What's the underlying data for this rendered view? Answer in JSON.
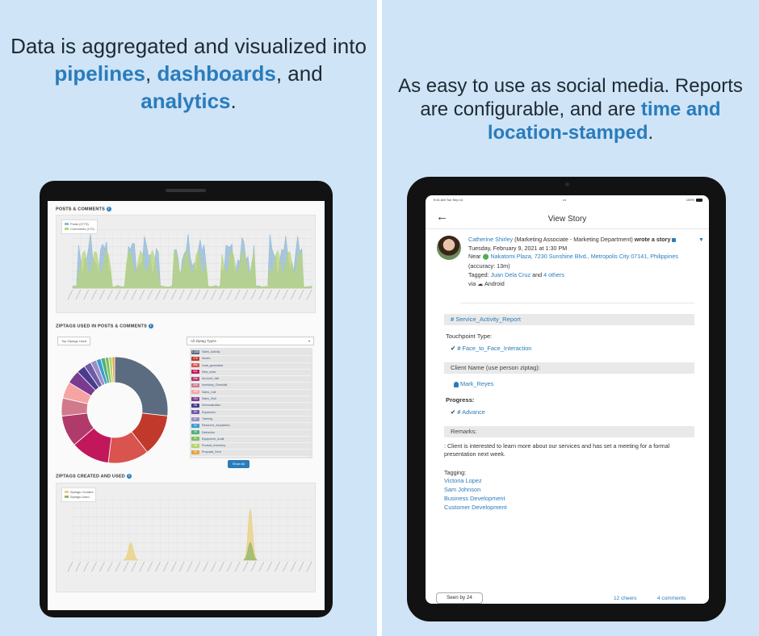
{
  "left": {
    "headline": {
      "part1": "Data is aggregated and visualized into ",
      "hl1": "pipelines",
      "part2": ", ",
      "hl2": "dashboards",
      "part3": ", and ",
      "hl3": "analytics",
      "part4": "."
    },
    "dashboard": {
      "posts_title": "POSTS & COMMENTS",
      "posts_legend": [
        "Posts (2773)",
        "Comments (170)"
      ],
      "ziptags_used_title": "ZIPTAGS USED IN POSTS & COMMENTS",
      "view_select": "Top Ziptags Used",
      "ztype_select": "All Ziptag Types",
      "ziptag_rows": [
        {
          "count": "1,005",
          "label": "Sales_Activity"
        },
        {
          "count": "478",
          "label": "Issues"
        },
        {
          "count": "466",
          "label": "Lead_generated"
        },
        {
          "count": "441",
          "label": "New_order"
        },
        {
          "count": "356",
          "label": "Account_visit"
        },
        {
          "count": "205",
          "label": "Inventory_Checklist"
        },
        {
          "count": "188",
          "label": "Sales_Call"
        },
        {
          "count": "154",
          "label": "Sales_Visit"
        },
        {
          "count": "98",
          "label": "Demonstration"
        },
        {
          "count": "83",
          "label": "Expansion"
        },
        {
          "count": "67",
          "label": "Training"
        },
        {
          "count": "54",
          "label": "Resource_Acquisition"
        },
        {
          "count": "49",
          "label": "Deliveries"
        },
        {
          "count": "41",
          "label": "Equipment_Audit"
        },
        {
          "count": "38",
          "label": "Product_Inventory"
        },
        {
          "count": "30",
          "label": "Proposal_Sent"
        }
      ],
      "show_all": "Show All",
      "ziptags_created_title": "ZIPTAGS CREATED AND USED",
      "created_legend": [
        "Ziptags Created",
        "Ziptags Used"
      ],
      "colors": {
        "posts": "#8fb8d8",
        "comments": "#b9d37a",
        "created": "#e8cf7c",
        "used": "#8fb56a",
        "accent": "#2a7cbb"
      },
      "donut_colors": [
        "#5b6c80",
        "#c0392b",
        "#d9534f",
        "#c2185b",
        "#b03a6a",
        "#d17a8c",
        "#f5a3a3",
        "#7a3b8f",
        "#4a3b8f",
        "#6f5ba6",
        "#9b8ec4",
        "#3a9bd1",
        "#4fb07a",
        "#7cbf5c",
        "#b7d36b",
        "#e6a23c"
      ]
    }
  },
  "right": {
    "headline": {
      "part1": "As easy to use as social media. Reports are configurable, and are ",
      "hl1": "time and location-stamped",
      "part2": "."
    },
    "status": {
      "time": "9:41 AM   Tue Sep 14",
      "dots": "•••",
      "right": "100%"
    },
    "nav": {
      "back_icon": "←",
      "title": "View Story"
    },
    "story": {
      "author": "Catherine Shirley",
      "role": " (Marketing Associate - Marketing Department) ",
      "wrote": "wrote a story",
      "date": "Tuesday, February 9, 2021 at 1:30 PM",
      "near_label": "Near",
      "location": "Nakatomi Plaza, 7230 Sunshine Blvd., Metropolis City 07141, Philippines",
      "accuracy": " (accuracy: 13m)",
      "tagged_label": "Tagged: ",
      "tagged_person": "Juan Dela Cruz",
      "tagged_and": " and ",
      "tagged_others": "4 others",
      "via": "via",
      "platform": "Android"
    },
    "report": {
      "ziptag": "Service_Activity_Report",
      "touchpoint_label": "Touchpoint Type:",
      "touchpoint_value": "Face_to_Face_Interaction",
      "client_label": "Client Name (use person ziptag):",
      "client_value": "Mark_Reyes",
      "progress_label": "Progress:",
      "progress_value": "Advance",
      "remarks_label": "Remarks:",
      "remarks_text": ": Client is interested to learn more about our services and has set a meeting for a formal presentation next week.",
      "tagging_label": "Tagging:",
      "tagging": [
        "Victoria Lopez",
        "Sam Johnson",
        "Business Development",
        "Customer Development"
      ]
    },
    "footer": {
      "seen_by": "Seen by 24",
      "cheers": "12 cheers",
      "comments": "4 comments"
    }
  }
}
